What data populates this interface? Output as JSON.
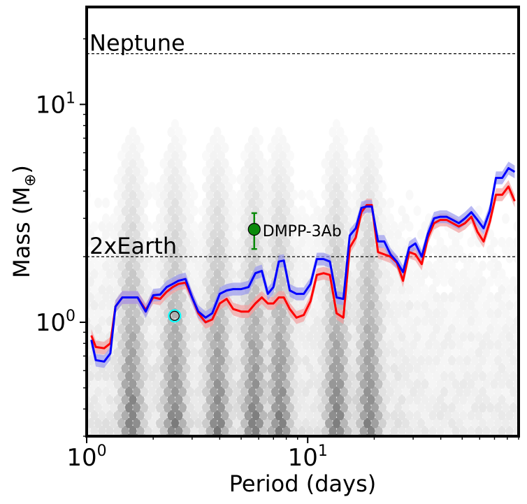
{
  "chart_data": {
    "type": "line",
    "title": "",
    "xlabel": "Period (days)",
    "ylabel_main": "Mass (M",
    "ylabel_sub": "⊕",
    "ylabel_close": ")",
    "xscale": "log",
    "yscale": "log",
    "xlim": [
      1.0,
      90
    ],
    "ylim": [
      0.3,
      28
    ],
    "x_ticks": [
      {
        "value": 1,
        "base": "10",
        "exp": "0"
      },
      {
        "value": 10,
        "base": "10",
        "exp": "1"
      }
    ],
    "y_ticks": [
      {
        "value": 1,
        "base": "10",
        "exp": "0"
      },
      {
        "value": 10,
        "base": "10",
        "exp": "1"
      }
    ],
    "reference_lines": [
      {
        "name": "Neptune",
        "label": "Neptune",
        "y": 17.1
      },
      {
        "name": "2xEarth",
        "label": "2xEarth",
        "y": 2.0
      }
    ],
    "series": [
      {
        "name": "red-limit",
        "color": "#ff0000",
        "band_color": "#f2a0a0",
        "x": [
          1.05,
          1.1,
          1.2,
          1.28,
          1.35,
          1.45,
          1.55,
          1.7,
          1.85,
          2.0,
          2.15,
          2.3,
          2.45,
          2.6,
          2.8,
          3.0,
          3.2,
          3.45,
          3.7,
          4.0,
          4.3,
          4.6,
          5.0,
          5.4,
          5.8,
          6.2,
          6.6,
          7.0,
          7.4,
          7.8,
          8.3,
          8.9,
          9.6,
          10.3,
          11.0,
          11.8,
          12.6,
          13.5,
          14.5,
          15.5,
          16.5,
          17.5,
          18.5,
          19.5,
          20.8,
          22.2,
          23.7,
          25.3,
          27.0,
          28.8,
          30.7,
          32.8,
          35.0,
          37.3,
          39.8,
          42.5,
          45.3,
          48.3,
          51.5,
          55.0,
          58.6,
          62.5,
          66.7,
          71.1,
          75.9,
          81.0,
          86.4
        ],
        "y": [
          0.87,
          0.77,
          0.76,
          0.8,
          1.18,
          1.3,
          1.3,
          1.3,
          1.14,
          1.3,
          1.28,
          1.38,
          1.45,
          1.5,
          1.52,
          1.3,
          1.1,
          1.0,
          1.03,
          1.22,
          1.28,
          1.15,
          1.12,
          1.12,
          1.22,
          1.3,
          1.22,
          1.22,
          1.3,
          1.3,
          1.15,
          1.05,
          1.08,
          1.25,
          1.65,
          1.68,
          1.65,
          1.1,
          1.05,
          2.2,
          2.45,
          3.2,
          3.45,
          3.45,
          2.1,
          2.05,
          2.0,
          1.88,
          1.55,
          2.1,
          2.05,
          1.85,
          2.45,
          2.85,
          2.95,
          2.95,
          2.85,
          2.75,
          2.85,
          3.05,
          2.6,
          2.35,
          2.9,
          3.85,
          3.85,
          4.2,
          3.6
        ]
      },
      {
        "name": "blue-limit",
        "color": "#0000ff",
        "band_color": "#9a9aee",
        "x": [
          1.05,
          1.1,
          1.2,
          1.28,
          1.35,
          1.45,
          1.55,
          1.7,
          1.85,
          2.0,
          2.15,
          2.3,
          2.45,
          2.6,
          2.8,
          3.0,
          3.2,
          3.45,
          3.7,
          4.0,
          4.3,
          4.6,
          5.0,
          5.4,
          5.8,
          6.2,
          6.6,
          7.0,
          7.4,
          7.8,
          8.3,
          8.9,
          9.6,
          10.3,
          11.0,
          11.8,
          12.6,
          13.5,
          14.5,
          15.5,
          16.5,
          17.5,
          18.5,
          19.5,
          20.8,
          22.2,
          23.7,
          25.3,
          27.0,
          28.8,
          30.7,
          32.8,
          35.0,
          37.3,
          39.8,
          42.5,
          45.3,
          48.3,
          51.5,
          55.0,
          58.6,
          62.5,
          66.7,
          71.1,
          75.9,
          81.0,
          86.4
        ],
        "y": [
          0.83,
          0.67,
          0.66,
          0.72,
          1.18,
          1.3,
          1.3,
          1.3,
          1.12,
          1.33,
          1.34,
          1.45,
          1.5,
          1.55,
          1.58,
          1.3,
          1.12,
          1.05,
          1.1,
          1.35,
          1.4,
          1.42,
          1.42,
          1.45,
          1.68,
          1.72,
          1.35,
          1.45,
          1.9,
          1.92,
          1.4,
          1.35,
          1.35,
          1.5,
          1.95,
          1.95,
          1.9,
          1.3,
          1.28,
          2.5,
          2.7,
          3.35,
          3.4,
          3.4,
          2.35,
          2.35,
          2.05,
          1.9,
          1.7,
          2.2,
          2.3,
          2.0,
          2.55,
          3.0,
          3.05,
          3.05,
          2.95,
          2.85,
          3.0,
          3.2,
          2.95,
          2.7,
          3.25,
          4.6,
          4.6,
          5.1,
          4.9
        ]
      }
    ],
    "highlight_points": [
      {
        "name": "dmpp-3ab",
        "label": "DMPP-3Ab",
        "x": 5.73,
        "y": 2.67,
        "y_err_low": 0.5,
        "y_err_high": 0.5,
        "color": "#0a8a0a"
      },
      {
        "name": "cyan-marker",
        "label": "",
        "x": 2.5,
        "y": 1.07,
        "color": "#00ffff"
      }
    ],
    "density_background": "grey hexbin of simulated planet detectability"
  }
}
